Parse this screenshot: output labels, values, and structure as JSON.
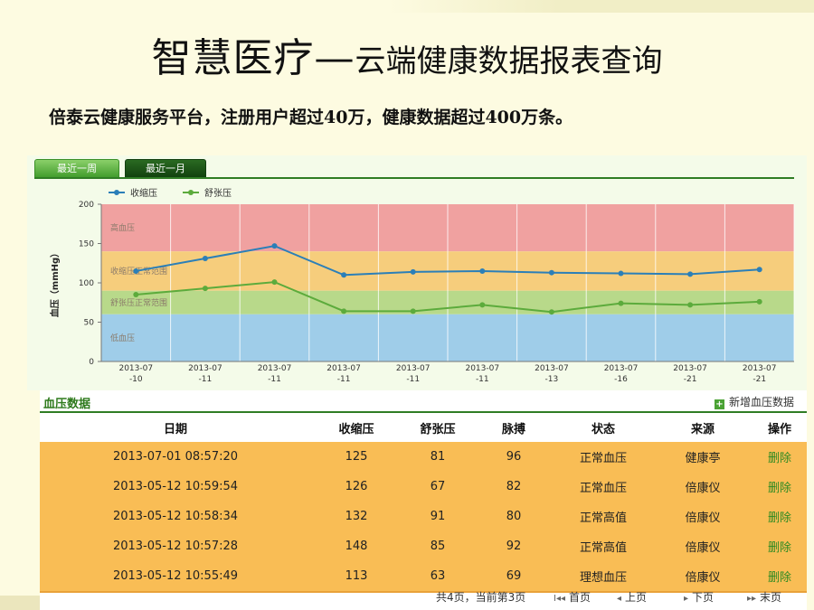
{
  "slide": {
    "title_main": "智慧医疗",
    "title_dash": "—",
    "title_sub": "云端健康数据报表查询",
    "subtitle": "倍泰云健康服务平台，注册用户超过40万，健康数据超过400万条。"
  },
  "tabs": [
    {
      "label": "最近一周"
    },
    {
      "label": "最近一月"
    }
  ],
  "chart_data": {
    "type": "line",
    "ylabel": "血压（mmHg）",
    "ylim": [
      0,
      200
    ],
    "yticks": [
      0,
      50,
      100,
      150,
      200
    ],
    "categories": [
      "2013-07\n-10",
      "2013-07\n-11",
      "2013-07\n-11",
      "2013-07\n-11",
      "2013-07\n-11",
      "2013-07\n-11",
      "2013-07\n-13",
      "2013-07\n-16",
      "2013-07\n-21",
      "2013-07\n-21"
    ],
    "series": [
      {
        "name": "收缩压",
        "color": "#2b7fb8",
        "values": [
          115,
          131,
          147,
          110,
          114,
          115,
          113,
          112,
          111,
          117
        ]
      },
      {
        "name": "舒张压",
        "color": "#5cab3c",
        "values": [
          85,
          93,
          101,
          64,
          64,
          72,
          63,
          74,
          72,
          76
        ]
      }
    ],
    "bands": [
      {
        "label": "高血压",
        "from": 140,
        "to": 200,
        "color": "#f0a1a0"
      },
      {
        "label": "收缩压正常范围",
        "from": 90,
        "to": 140,
        "color": "#f6cd7c"
      },
      {
        "label": "舒张压正常范围",
        "from": 60,
        "to": 90,
        "color": "#b8d98a"
      },
      {
        "label": "低血压",
        "from": 0,
        "to": 60,
        "color": "#9fcde9"
      }
    ]
  },
  "table": {
    "title": "血压数据",
    "add_label": "新增血压数据",
    "headers": [
      "日期",
      "收缩压",
      "舒张压",
      "脉搏",
      "状态",
      "来源",
      "操作"
    ],
    "rows": [
      [
        "2013-07-01 08:57:20",
        "125",
        "81",
        "96",
        "正常血压",
        "健康亭",
        "删除"
      ],
      [
        "2013-05-12 10:59:54",
        "126",
        "67",
        "82",
        "正常血压",
        "倍康仪",
        "删除"
      ],
      [
        "2013-05-12 10:58:34",
        "132",
        "91",
        "80",
        "正常高值",
        "倍康仪",
        "删除"
      ],
      [
        "2013-05-12 10:57:28",
        "148",
        "85",
        "92",
        "正常高值",
        "倍康仪",
        "删除"
      ],
      [
        "2013-05-12 10:55:49",
        "113",
        "63",
        "69",
        "理想血压",
        "倍康仪",
        "删除"
      ]
    ]
  },
  "pager": {
    "info": "共4页，当前第3页",
    "first": "首页",
    "prev": "上页",
    "next": "下页",
    "last": "末页"
  }
}
